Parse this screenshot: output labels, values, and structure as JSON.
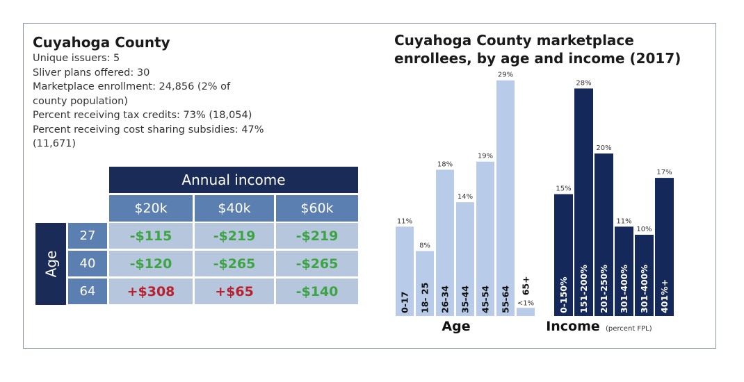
{
  "county_info": {
    "title": "Cuyahoga County",
    "lines": [
      "Unique issuers: 5",
      "Sliver plans offered: 30",
      "Marketplace enrollment: 24,856 (2% of",
      "county population)",
      "Percent receiving tax credits: 73% (18,054)",
      "Percent receiving cost sharing subsidies: 47%",
      "(11,671)"
    ]
  },
  "table": {
    "header": "Annual income",
    "side_label": "Age",
    "columns": [
      "$20k",
      "$40k",
      "$60k"
    ],
    "rows": [
      {
        "age": "27",
        "values": [
          "-$115",
          "-$219",
          "-$219"
        ],
        "signs": [
          "neg",
          "neg",
          "neg"
        ]
      },
      {
        "age": "40",
        "values": [
          "-$120",
          "-$265",
          "-$265"
        ],
        "signs": [
          "neg",
          "neg",
          "neg"
        ]
      },
      {
        "age": "64",
        "values": [
          "+$308",
          "+$65",
          "-$140"
        ],
        "signs": [
          "pos",
          "pos",
          "neg"
        ]
      }
    ]
  },
  "chart_data": {
    "type": "bar",
    "title": "Cuyahoga County marketplace enrollees, by age and income (2017)",
    "colors": {
      "age": "#b8cbe8",
      "income": "#15285a",
      "value_text": "#333333"
    },
    "panels": [
      {
        "name": "age",
        "xlabel": "Age",
        "xlabel_note": "",
        "categories": [
          "0-17",
          "18- 25",
          "26-34",
          "35-44",
          "45-54",
          "55-64",
          "65+"
        ],
        "values": [
          11,
          8,
          18,
          14,
          19,
          29,
          1
        ],
        "value_labels": [
          "11%",
          "8%",
          "18%",
          "14%",
          "19%",
          "29%",
          "<1%"
        ]
      },
      {
        "name": "income",
        "xlabel": "Income",
        "xlabel_note": "(percent FPL)",
        "categories": [
          "0-150%",
          "151-200%",
          "201-250%",
          "301-400%",
          "301-400%",
          "401%+"
        ],
        "values": [
          15,
          28,
          20,
          11,
          10,
          17
        ],
        "value_labels": [
          "15%",
          "28%",
          "20%",
          "11%",
          "10%",
          "17%"
        ]
      }
    ]
  }
}
